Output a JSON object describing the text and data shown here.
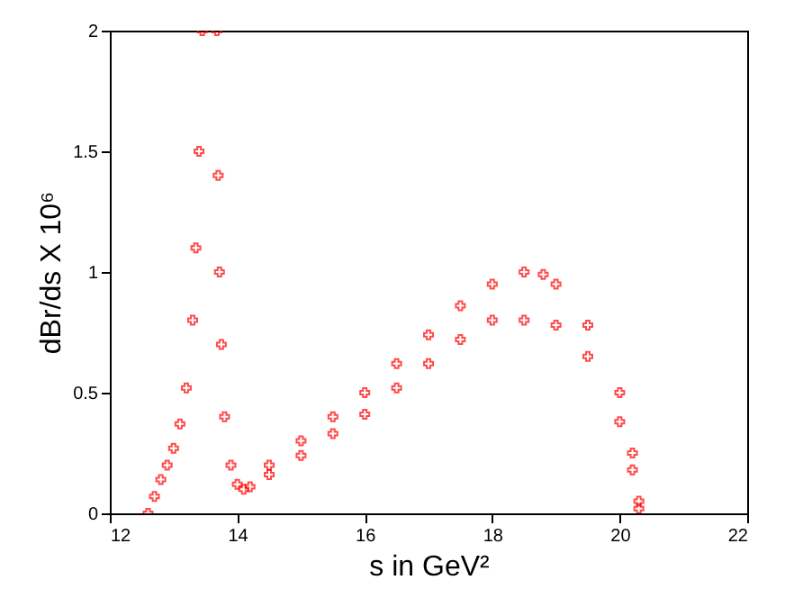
{
  "chart_data": {
    "type": "scatter",
    "xlabel": "s in GeV²",
    "ylabel": "dBr/ds X 10⁶",
    "xlim": [
      12,
      22
    ],
    "xticks": [
      12,
      14,
      16,
      18,
      20,
      22
    ],
    "ylim": [
      0,
      2
    ],
    "yticks": [
      0,
      0.5,
      1,
      1.5,
      2
    ],
    "grid": false,
    "marker": "cross",
    "series": [
      {
        "color": "#ff0000",
        "x": [
          12.6,
          12.7,
          12.8,
          12.9,
          13.0,
          13.1,
          13.2,
          13.3,
          13.35,
          13.4,
          13.45,
          13.68,
          13.7,
          13.72,
          13.75,
          13.8,
          13.9,
          14.0,
          14.1,
          14.2,
          14.5,
          15,
          15.5,
          16,
          16.5,
          17,
          17.5,
          18,
          18.5,
          18.8,
          19,
          19.5,
          20,
          20.2,
          20.3,
          14.5,
          15,
          15.5,
          16,
          16.5,
          17,
          17.5,
          18,
          18.5,
          19,
          19.5,
          20,
          20.2,
          20.3
        ],
        "values": [
          0,
          0.07,
          0.14,
          0.2,
          0.27,
          0.37,
          0.52,
          0.8,
          1.1,
          1.5,
          2.0,
          2.0,
          1.4,
          1.0,
          0.7,
          0.4,
          0.2,
          0.12,
          0.1,
          0.11,
          0.2,
          0.3,
          0.4,
          0.5,
          0.62,
          0.74,
          0.86,
          0.95,
          1.0,
          0.99,
          0.95,
          0.78,
          0.5,
          0.25,
          0.05,
          0.16,
          0.24,
          0.33,
          0.41,
          0.52,
          0.62,
          0.72,
          0.8,
          0.8,
          0.78,
          0.65,
          0.38,
          0.18,
          0.02
        ]
      }
    ]
  }
}
